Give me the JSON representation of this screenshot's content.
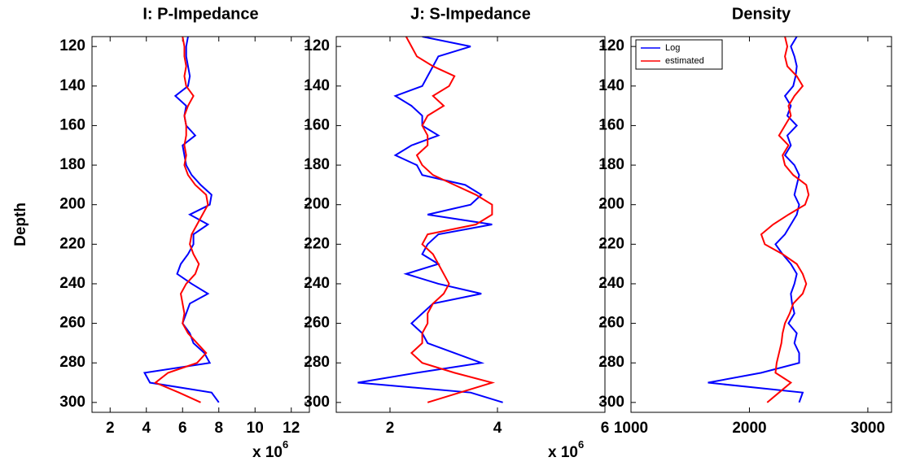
{
  "chart_data": [
    {
      "type": "line",
      "title": "I: P-Impedance",
      "ylabel": "Depth",
      "xlabel": "x 10",
      "xlabel_sup": "6",
      "y": [
        115,
        120,
        125,
        130,
        135,
        140,
        145,
        150,
        155,
        160,
        165,
        170,
        175,
        180,
        185,
        190,
        195,
        200,
        205,
        210,
        215,
        220,
        225,
        230,
        235,
        240,
        245,
        250,
        255,
        260,
        265,
        270,
        275,
        280,
        285,
        290,
        295,
        300
      ],
      "series": [
        {
          "name": "Log",
          "color": "#0000ff",
          "values": [
            6.3,
            6.2,
            6.2,
            6.3,
            6.4,
            6.3,
            5.6,
            6.2,
            6.1,
            6.2,
            6.7,
            6.0,
            6.1,
            6.2,
            6.5,
            7.0,
            7.6,
            7.5,
            6.4,
            7.4,
            6.6,
            6.6,
            6.3,
            5.9,
            5.7,
            6.5,
            7.4,
            6.4,
            6.2,
            6.0,
            6.4,
            6.6,
            7.2,
            7.5,
            3.9,
            4.2,
            7.6,
            8.0
          ]
        },
        {
          "name": "estimated",
          "color": "#ff0000",
          "values": [
            6.0,
            6.1,
            6.1,
            6.2,
            6.1,
            6.2,
            6.6,
            6.3,
            6.1,
            6.2,
            6.2,
            6.1,
            6.2,
            6.1,
            6.3,
            6.7,
            7.3,
            7.4,
            7.1,
            6.8,
            6.5,
            6.4,
            6.6,
            6.9,
            6.7,
            6.2,
            5.9,
            6.0,
            6.1,
            6.0,
            6.3,
            6.8,
            7.3,
            6.8,
            5.2,
            4.5,
            5.8,
            7.0
          ]
        }
      ],
      "xlim": [
        1,
        13
      ],
      "xticks": [
        2,
        4,
        6,
        8,
        10,
        12
      ],
      "ylim": [
        115,
        305
      ],
      "yticks": [
        120,
        140,
        160,
        180,
        200,
        220,
        240,
        260,
        280,
        300
      ],
      "y_inverted": true
    },
    {
      "type": "line",
      "title": "J: S-Impedance",
      "xlabel": "x 10",
      "xlabel_sup": "6",
      "y": [
        115,
        120,
        125,
        130,
        135,
        140,
        145,
        150,
        155,
        160,
        165,
        170,
        175,
        180,
        185,
        190,
        195,
        200,
        205,
        210,
        215,
        220,
        225,
        230,
        235,
        240,
        245,
        250,
        255,
        260,
        265,
        270,
        275,
        280,
        285,
        290,
        295,
        300
      ],
      "series": [
        {
          "name": "Log",
          "color": "#0000ff",
          "values": [
            2.6,
            3.5,
            2.9,
            2.8,
            2.7,
            2.6,
            2.1,
            2.4,
            2.6,
            2.6,
            2.9,
            2.4,
            2.1,
            2.5,
            2.6,
            3.4,
            3.7,
            3.5,
            2.7,
            3.9,
            2.9,
            2.7,
            2.6,
            2.9,
            2.3,
            2.9,
            3.7,
            2.8,
            2.6,
            2.4,
            2.6,
            2.7,
            3.2,
            3.7,
            2.5,
            1.4,
            3.5,
            4.1
          ]
        },
        {
          "name": "estimated",
          "color": "#ff0000",
          "values": [
            2.3,
            2.4,
            2.5,
            2.8,
            3.2,
            3.1,
            2.8,
            3.0,
            2.7,
            2.6,
            2.7,
            2.7,
            2.5,
            2.6,
            2.8,
            3.2,
            3.6,
            3.9,
            3.9,
            3.6,
            2.7,
            2.6,
            2.8,
            2.9,
            3.0,
            3.1,
            3.0,
            2.8,
            2.7,
            2.7,
            2.6,
            2.6,
            2.4,
            2.6,
            3.2,
            3.9,
            3.3,
            2.7
          ]
        }
      ],
      "xlim": [
        1,
        6
      ],
      "xticks": [
        2,
        4,
        6
      ],
      "ylim": [
        115,
        305
      ],
      "yticks": [
        120,
        140,
        160,
        180,
        200,
        220,
        240,
        260,
        280,
        300
      ],
      "y_inverted": true
    },
    {
      "type": "line",
      "title": "Density",
      "legend": "upper left",
      "y": [
        115,
        120,
        125,
        130,
        135,
        140,
        145,
        150,
        155,
        160,
        165,
        170,
        175,
        180,
        185,
        190,
        195,
        200,
        205,
        210,
        215,
        220,
        225,
        230,
        235,
        240,
        245,
        250,
        255,
        260,
        265,
        270,
        275,
        280,
        285,
        290,
        295,
        300
      ],
      "series": [
        {
          "name": "Log",
          "color": "#0000ff",
          "values": [
            2400,
            2350,
            2380,
            2400,
            2390,
            2370,
            2300,
            2350,
            2320,
            2400,
            2320,
            2350,
            2300,
            2380,
            2420,
            2400,
            2380,
            2420,
            2400,
            2350,
            2300,
            2220,
            2280,
            2350,
            2400,
            2380,
            2350,
            2360,
            2380,
            2330,
            2400,
            2380,
            2420,
            2420,
            2100,
            1650,
            2450,
            2420
          ]
        },
        {
          "name": "estimated",
          "color": "#ff0000",
          "values": [
            2300,
            2320,
            2300,
            2320,
            2400,
            2450,
            2380,
            2330,
            2350,
            2300,
            2250,
            2330,
            2280,
            2300,
            2370,
            2480,
            2500,
            2470,
            2330,
            2200,
            2100,
            2130,
            2280,
            2400,
            2450,
            2480,
            2450,
            2370,
            2340,
            2300,
            2280,
            2270,
            2250,
            2230,
            2220,
            2350,
            2250,
            2150
          ]
        }
      ],
      "xlim": [
        1000,
        3200
      ],
      "xticks": [
        1000,
        2000,
        3000
      ],
      "ylim": [
        115,
        305
      ],
      "yticks": [
        120,
        140,
        160,
        180,
        200,
        220,
        240,
        260,
        280,
        300
      ],
      "y_inverted": true
    }
  ]
}
